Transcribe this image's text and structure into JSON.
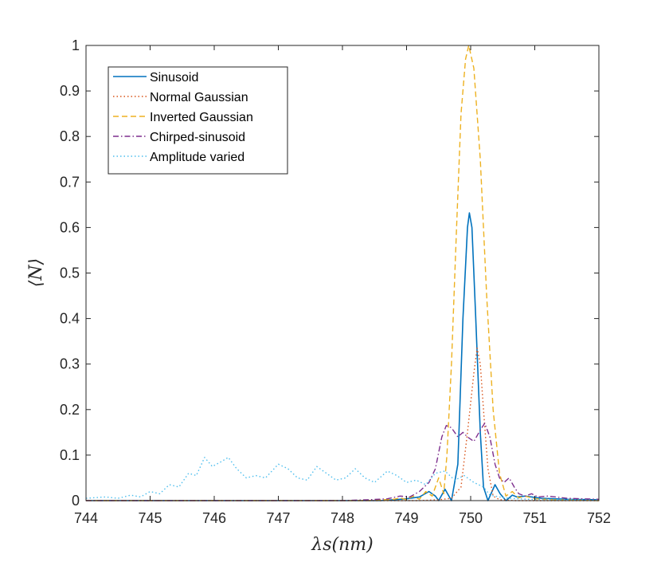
{
  "chart_data": {
    "type": "line",
    "title": "",
    "xlabel": "λs(nm)",
    "ylabel": "⟨N⟩",
    "xlim": [
      744,
      752
    ],
    "ylim": [
      0,
      1
    ],
    "xticks": [
      "744",
      "745",
      "746",
      "747",
      "748",
      "749",
      "750",
      "751",
      "752"
    ],
    "yticks": [
      "0",
      "0.1",
      "0.2",
      "0.3",
      "0.4",
      "0.5",
      "0.6",
      "0.7",
      "0.8",
      "0.9",
      "1"
    ],
    "grid": false,
    "legend_position": "top-left",
    "series": [
      {
        "name": "Sinusoid",
        "color": "#0072bd",
        "dash": "solid",
        "points": [
          [
            744,
            0
          ],
          [
            748.6,
            0
          ],
          [
            749.0,
            0.004
          ],
          [
            749.2,
            0.008
          ],
          [
            749.35,
            0.02
          ],
          [
            749.45,
            0.01
          ],
          [
            749.5,
            0
          ],
          [
            749.6,
            0.025
          ],
          [
            749.7,
            0
          ],
          [
            749.8,
            0.08
          ],
          [
            749.88,
            0.4
          ],
          [
            749.95,
            0.6
          ],
          [
            749.98,
            0.632
          ],
          [
            750.02,
            0.6
          ],
          [
            750.08,
            0.4
          ],
          [
            750.15,
            0.15
          ],
          [
            750.2,
            0.03
          ],
          [
            750.27,
            0
          ],
          [
            750.38,
            0.035
          ],
          [
            750.46,
            0.015
          ],
          [
            750.55,
            0
          ],
          [
            750.65,
            0.012
          ],
          [
            750.72,
            0.008
          ],
          [
            750.85,
            0.01
          ],
          [
            751.1,
            0.005
          ],
          [
            751.5,
            0.003
          ],
          [
            752,
            0.002
          ]
        ]
      },
      {
        "name": "Normal Gaussian",
        "color": "#d95319",
        "dash": "dot",
        "points": [
          [
            744,
            0
          ],
          [
            749.2,
            0
          ],
          [
            749.5,
            0.002
          ],
          [
            749.7,
            0.005
          ],
          [
            749.85,
            0.03
          ],
          [
            749.95,
            0.15
          ],
          [
            750.05,
            0.28
          ],
          [
            750.1,
            0.335
          ],
          [
            750.15,
            0.3
          ],
          [
            750.2,
            0.2
          ],
          [
            750.27,
            0.07
          ],
          [
            750.35,
            0.01
          ],
          [
            750.45,
            0.002
          ],
          [
            750.7,
            0
          ],
          [
            752,
            0
          ]
        ]
      },
      {
        "name": "Inverted Gaussian",
        "color": "#edb120",
        "dash": "dash",
        "points": [
          [
            744,
            0
          ],
          [
            748.4,
            0
          ],
          [
            748.6,
            0.002
          ],
          [
            748.8,
            0.003
          ],
          [
            748.9,
            0.006
          ],
          [
            749.0,
            0.002
          ],
          [
            749.1,
            0.01
          ],
          [
            749.2,
            0.003
          ],
          [
            749.3,
            0.02
          ],
          [
            749.4,
            0.01
          ],
          [
            749.5,
            0.05
          ],
          [
            749.58,
            0.015
          ],
          [
            749.63,
            0.1
          ],
          [
            749.7,
            0.3
          ],
          [
            749.78,
            0.6
          ],
          [
            749.85,
            0.85
          ],
          [
            749.92,
            0.97
          ],
          [
            749.97,
            1.0
          ],
          [
            750.05,
            0.95
          ],
          [
            750.15,
            0.75
          ],
          [
            750.25,
            0.45
          ],
          [
            750.35,
            0.2
          ],
          [
            750.45,
            0.06
          ],
          [
            750.55,
            0.01
          ],
          [
            750.65,
            0.02
          ],
          [
            750.75,
            0.006
          ],
          [
            750.85,
            0.01
          ],
          [
            751.0,
            0.004
          ],
          [
            751.3,
            0.002
          ],
          [
            752,
            0
          ]
        ]
      },
      {
        "name": "Chirped-sinusoid",
        "color": "#7e2f8e",
        "dash": "dashdot",
        "points": [
          [
            744,
            0
          ],
          [
            748.0,
            0
          ],
          [
            748.4,
            0.002
          ],
          [
            748.7,
            0.004
          ],
          [
            748.9,
            0.01
          ],
          [
            749.05,
            0.008
          ],
          [
            749.2,
            0.02
          ],
          [
            749.35,
            0.04
          ],
          [
            749.45,
            0.07
          ],
          [
            749.55,
            0.14
          ],
          [
            749.62,
            0.165
          ],
          [
            749.7,
            0.16
          ],
          [
            749.8,
            0.14
          ],
          [
            749.88,
            0.15
          ],
          [
            749.95,
            0.14
          ],
          [
            750.05,
            0.13
          ],
          [
            750.15,
            0.155
          ],
          [
            750.22,
            0.17
          ],
          [
            750.3,
            0.14
          ],
          [
            750.38,
            0.08
          ],
          [
            750.45,
            0.05
          ],
          [
            750.52,
            0.04
          ],
          [
            750.6,
            0.05
          ],
          [
            750.68,
            0.03
          ],
          [
            750.75,
            0.015
          ],
          [
            750.85,
            0.01
          ],
          [
            750.95,
            0.015
          ],
          [
            751.05,
            0.008
          ],
          [
            751.2,
            0.01
          ],
          [
            751.5,
            0.005
          ],
          [
            752,
            0.003
          ]
        ]
      },
      {
        "name": "Amplitude varied",
        "color": "#4dbeee",
        "dash": "dot",
        "points": [
          [
            744,
            0.005
          ],
          [
            744.3,
            0.008
          ],
          [
            744.5,
            0.005
          ],
          [
            744.7,
            0.012
          ],
          [
            744.85,
            0.008
          ],
          [
            745.0,
            0.02
          ],
          [
            745.15,
            0.015
          ],
          [
            745.3,
            0.035
          ],
          [
            745.45,
            0.03
          ],
          [
            745.6,
            0.06
          ],
          [
            745.72,
            0.055
          ],
          [
            745.85,
            0.095
          ],
          [
            745.97,
            0.075
          ],
          [
            746.1,
            0.085
          ],
          [
            746.22,
            0.095
          ],
          [
            746.35,
            0.07
          ],
          [
            746.5,
            0.05
          ],
          [
            746.65,
            0.055
          ],
          [
            746.8,
            0.05
          ],
          [
            747.0,
            0.08
          ],
          [
            747.15,
            0.07
          ],
          [
            747.3,
            0.05
          ],
          [
            747.45,
            0.045
          ],
          [
            747.6,
            0.075
          ],
          [
            747.75,
            0.06
          ],
          [
            747.9,
            0.045
          ],
          [
            748.05,
            0.05
          ],
          [
            748.2,
            0.07
          ],
          [
            748.35,
            0.05
          ],
          [
            748.5,
            0.04
          ],
          [
            748.7,
            0.065
          ],
          [
            748.85,
            0.055
          ],
          [
            749.0,
            0.04
          ],
          [
            749.15,
            0.045
          ],
          [
            749.3,
            0.035
          ],
          [
            749.45,
            0.06
          ],
          [
            749.6,
            0.065
          ],
          [
            749.75,
            0.045
          ],
          [
            749.9,
            0.055
          ],
          [
            750.05,
            0.04
          ],
          [
            750.2,
            0.03
          ],
          [
            750.3,
            0.012
          ],
          [
            750.45,
            0.008
          ],
          [
            750.6,
            0.005
          ],
          [
            750.9,
            0.003
          ],
          [
            751.5,
            0.002
          ],
          [
            752,
            0.001
          ]
        ]
      }
    ]
  }
}
